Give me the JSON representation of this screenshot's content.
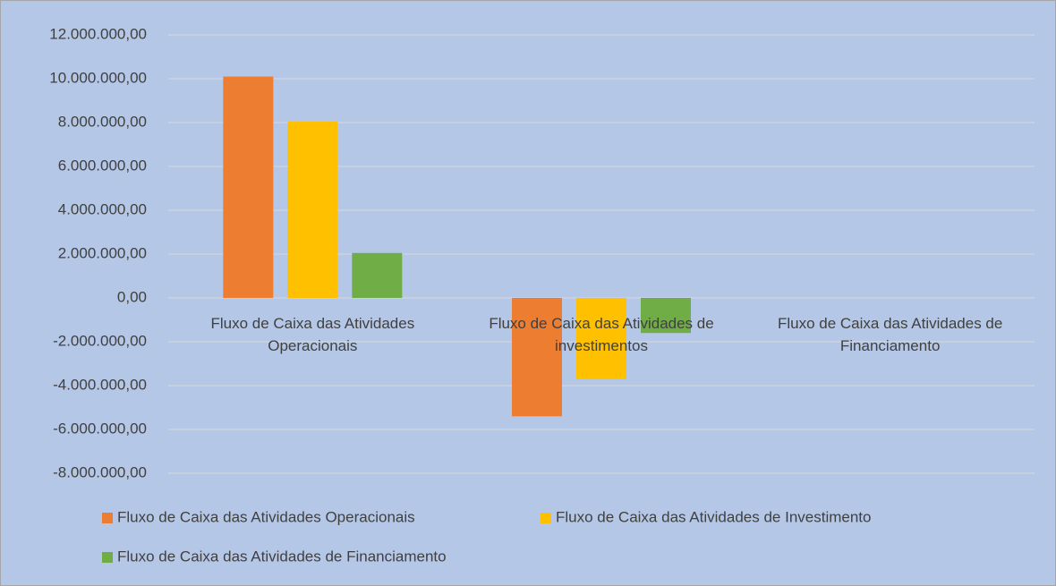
{
  "chart_data": {
    "type": "bar",
    "categories": [
      "Fluxo de Caixa das Atividades Operacionais",
      "Fluxo de Caixa das Atividades de investimentos",
      "Fluxo de Caixa das Atividades de Financiamento"
    ],
    "series": [
      {
        "name": "Fluxo de Caixa das Atividades Operacionais",
        "color": "#ed7d31",
        "values": [
          10100000,
          -5400000,
          null
        ]
      },
      {
        "name": "Fluxo de Caixa das Atividades de Investimento",
        "color": "#ffc000",
        "values": [
          8050000,
          -3700000,
          null
        ]
      },
      {
        "name": "Fluxo de Caixa das Atividades de Financiamento",
        "color": "#70ad47",
        "values": [
          2050000,
          -1600000,
          null
        ]
      }
    ],
    "ylim": [
      -8000000,
      12000000
    ],
    "yticks": [
      {
        "value": -8000000,
        "label": "-8.000.000,00"
      },
      {
        "value": -6000000,
        "label": "-6.000.000,00"
      },
      {
        "value": -4000000,
        "label": "-4.000.000,00"
      },
      {
        "value": -2000000,
        "label": "-2.000.000,00"
      },
      {
        "value": 0,
        "label": "0,00"
      },
      {
        "value": 2000000,
        "label": "2.000.000,00"
      },
      {
        "value": 4000000,
        "label": "4.000.000,00"
      },
      {
        "value": 6000000,
        "label": "6.000.000,00"
      },
      {
        "value": 8000000,
        "label": "8.000.000,00"
      },
      {
        "value": 10000000,
        "label": "10.000.000,00"
      },
      {
        "value": 12000000,
        "label": "12.000.000,00"
      }
    ],
    "grid": true,
    "legend": "bottom"
  }
}
